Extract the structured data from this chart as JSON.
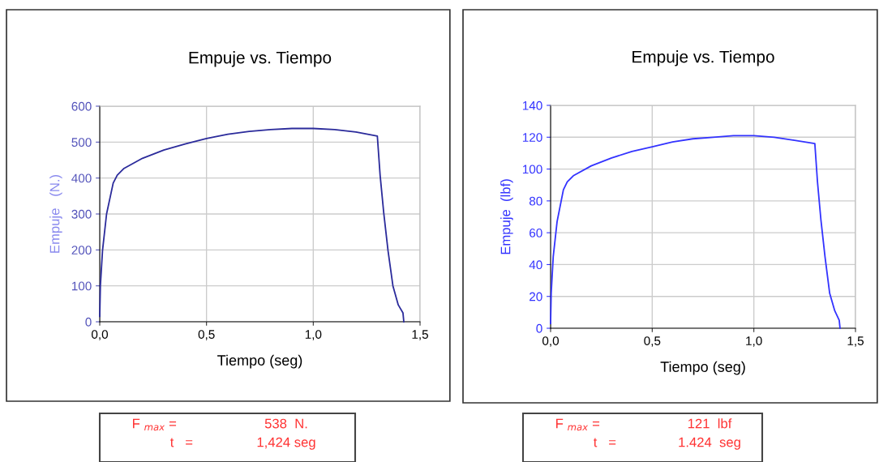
{
  "chart_data": [
    {
      "type": "line",
      "title": "Empuje vs. Tiempo",
      "xlabel": "Tiempo (seg)",
      "ylabel": "Empuje   (N.)",
      "x": [
        0,
        0.003,
        0.013,
        0.032,
        0.063,
        0.082,
        0.114,
        0.2,
        0.3,
        0.4,
        0.5,
        0.6,
        0.7,
        0.8,
        0.9,
        1.0,
        1.1,
        1.2,
        1.3,
        1.313,
        1.33,
        1.35,
        1.373,
        1.398,
        1.42,
        1.424
      ],
      "series": [
        {
          "color": "#2b2b9b",
          "values": [
            15,
            100,
            198,
            300,
            386,
            408,
            427,
            455,
            478,
            495,
            510,
            522,
            530,
            535,
            538,
            538,
            535,
            528,
            517,
            408,
            303,
            198,
            100,
            47,
            25,
            0
          ]
        }
      ],
      "xlim": [
        0,
        1.5
      ],
      "ylim": [
        0,
        600
      ],
      "xticks": [
        {
          "value": 0,
          "label": "0,0"
        },
        {
          "value": 0.5,
          "label": "0,5"
        },
        {
          "value": 1.0,
          "label": "1,0"
        },
        {
          "value": 1.5,
          "label": "1,5"
        }
      ],
      "yticks": [
        0,
        100,
        200,
        300,
        400,
        500,
        600
      ],
      "grid": true,
      "annotations": [
        "F $_{max}$ =",
        "538  N.",
        "t   =",
        "1,424 seg"
      ]
    },
    {
      "type": "line",
      "title": "Empuje vs. Tiempo",
      "xlabel": "Tiempo (seg)",
      "ylabel": "Empuje  (lbf)",
      "x": [
        0,
        0.003,
        0.013,
        0.032,
        0.063,
        0.082,
        0.114,
        0.2,
        0.3,
        0.4,
        0.5,
        0.6,
        0.7,
        0.8,
        0.9,
        1.0,
        1.1,
        1.2,
        1.3,
        1.313,
        1.33,
        1.35,
        1.373,
        1.398,
        1.42,
        1.424
      ],
      "series": [
        {
          "color": "#3333ff",
          "values": [
            3,
            22,
            45,
            67,
            87,
            92,
            96,
            102,
            107,
            111,
            114,
            117,
            119,
            120,
            121,
            121,
            120,
            118,
            116,
            92,
            68,
            45,
            22,
            11,
            5,
            0
          ]
        }
      ],
      "xlim": [
        0,
        1.5
      ],
      "ylim": [
        0,
        140
      ],
      "xticks": [
        {
          "value": 0,
          "label": "0,0"
        },
        {
          "value": 0.5,
          "label": "0,5"
        },
        {
          "value": 1.0,
          "label": "1,0"
        },
        {
          "value": 1.5,
          "label": "1,5"
        }
      ],
      "yticks": [
        0,
        20,
        40,
        60,
        80,
        100,
        120,
        140
      ],
      "grid": true,
      "annotations": [
        "F $_{max}$ =",
        "121  lbf",
        "t   =",
        "1.424  seg"
      ]
    }
  ]
}
